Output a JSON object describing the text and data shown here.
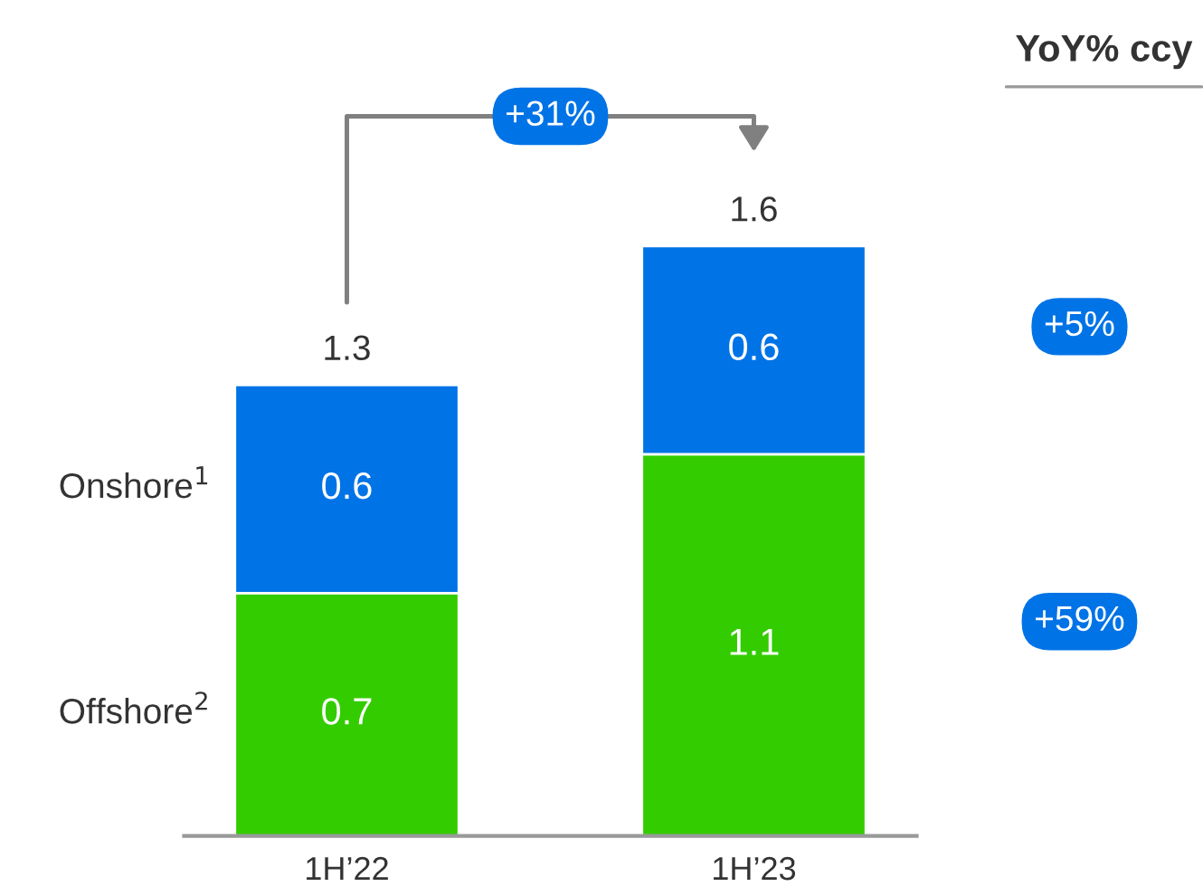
{
  "chart_data": {
    "type": "bar",
    "stacked": true,
    "data_labels": true,
    "categories": [
      "1H’22",
      "1H’23"
    ],
    "series": [
      {
        "name": "Offshore$^{2}$",
        "color": "#33cc00",
        "values": [
          0.7,
          1.1
        ]
      },
      {
        "name": "Onshore$^{1}$",
        "color": "#0073e6",
        "values": [
          0.6,
          0.6
        ]
      }
    ],
    "totals": [
      "1.3",
      "1.6"
    ],
    "annotations": [
      "YoY% ccy",
      "+31%",
      "+5%",
      "+59%"
    ]
  }
}
